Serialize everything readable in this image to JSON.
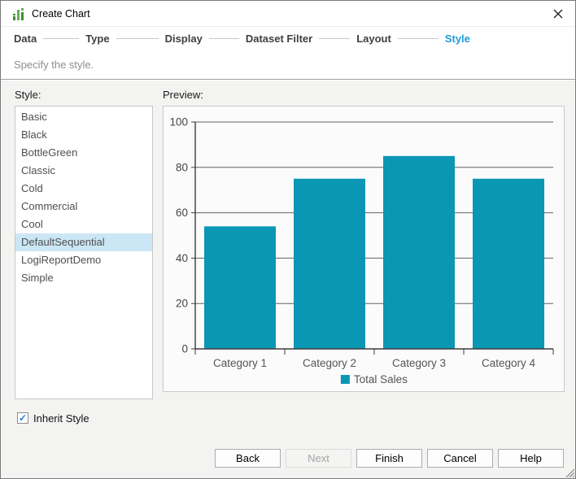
{
  "window": {
    "title": "Create Chart"
  },
  "wizard": {
    "steps": [
      {
        "label": "Data",
        "active": false
      },
      {
        "label": "Type",
        "active": false
      },
      {
        "label": "Display",
        "active": false
      },
      {
        "label": "Dataset Filter",
        "active": false
      },
      {
        "label": "Layout",
        "active": false
      },
      {
        "label": "Style",
        "active": true
      }
    ]
  },
  "subtitle": "Specify the style.",
  "style_panel": {
    "label": "Style:",
    "items": [
      "Basic",
      "Black",
      "BottleGreen",
      "Classic",
      "Cold",
      "Commercial",
      "Cool",
      "DefaultSequential",
      "LogiReportDemo",
      "Simple"
    ],
    "selected": "DefaultSequential"
  },
  "preview_panel": {
    "label": "Preview:"
  },
  "inherit_style": {
    "label": "Inherit Style",
    "checked": true,
    "checkmark": "✓"
  },
  "buttons": [
    {
      "label": "Back",
      "disabled": false
    },
    {
      "label": "Next",
      "disabled": true
    },
    {
      "label": "Finish",
      "disabled": false
    },
    {
      "label": "Cancel",
      "disabled": false
    },
    {
      "label": "Help",
      "disabled": false
    }
  ],
  "colors": {
    "bar_teal": "#0a97b4",
    "active_step_blue": "#1e9cd8",
    "selection_blue": "#cbe7f5",
    "check_blue": "#1f7ce0",
    "icon_green_light": "#62b152",
    "icon_green_dark": "#3e8e2f",
    "gridline": "#636363",
    "axis": "#3c3c3c"
  },
  "chart_data": {
    "type": "bar",
    "categories": [
      "Category 1",
      "Category 2",
      "Category 3",
      "Category 4"
    ],
    "series": [
      {
        "name": "Total Sales",
        "values": [
          54,
          75,
          85,
          75
        ],
        "color": "#0a97b4"
      }
    ],
    "title": "",
    "xlabel": "",
    "ylabel": "",
    "ylim": [
      0,
      100
    ],
    "yticks": [
      0,
      20,
      40,
      60,
      80,
      100
    ],
    "grid": true,
    "legend_position": "bottom"
  }
}
